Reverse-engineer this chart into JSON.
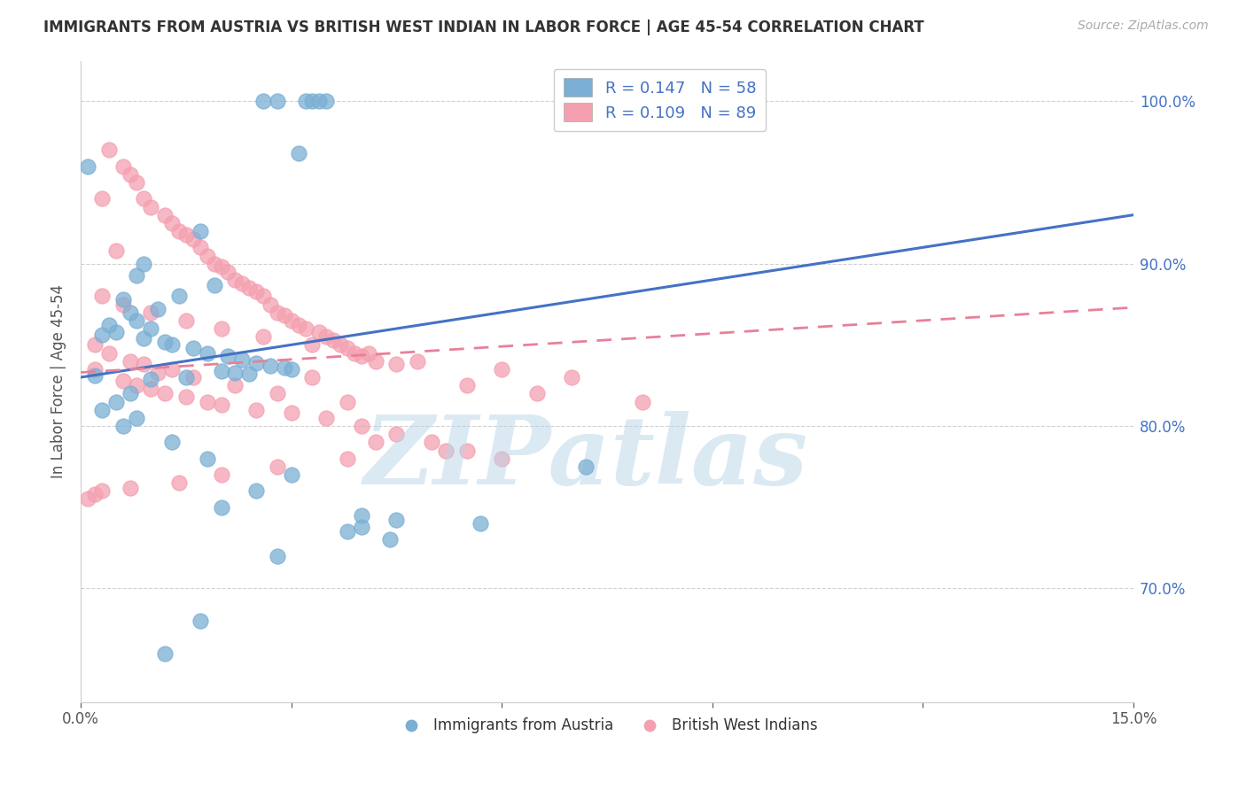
{
  "title": "IMMIGRANTS FROM AUSTRIA VS BRITISH WEST INDIAN IN LABOR FORCE | AGE 45-54 CORRELATION CHART",
  "source": "Source: ZipAtlas.com",
  "ylabel": "In Labor Force | Age 45-54",
  "xlim": [
    0.0,
    0.15
  ],
  "ylim": [
    0.63,
    1.025
  ],
  "x_tick_positions": [
    0.0,
    0.03,
    0.06,
    0.09,
    0.12,
    0.15
  ],
  "x_tick_labels": [
    "0.0%",
    "",
    "",
    "",
    "",
    "15.0%"
  ],
  "y_tick_positions": [
    0.7,
    0.8,
    0.9,
    1.0
  ],
  "y_tick_labels": [
    "70.0%",
    "80.0%",
    "90.0%",
    "100.0%"
  ],
  "legend_blue_label": "R = 0.147   N = 58",
  "legend_pink_label": "R = 0.109   N = 89",
  "legend_bottom_blue": "Immigrants from Austria",
  "legend_bottom_pink": "British West Indians",
  "blue_color": "#7BAFD4",
  "pink_color": "#F4A0B0",
  "blue_line_color": "#4472C4",
  "pink_line_color": "#E88098",
  "watermark": "ZIPatlas",
  "blue_trend_x0": 0.0,
  "blue_trend_y0": 0.83,
  "blue_trend_x1": 0.15,
  "blue_trend_y1": 0.93,
  "pink_trend_x0": 0.0,
  "pink_trend_y0": 0.833,
  "pink_trend_x1": 0.15,
  "pink_trend_y1": 0.873,
  "austria_x": [
    0.026,
    0.028,
    0.033,
    0.034,
    0.032,
    0.035,
    0.001,
    0.031,
    0.017,
    0.009,
    0.008,
    0.019,
    0.014,
    0.006,
    0.011,
    0.007,
    0.008,
    0.004,
    0.01,
    0.005,
    0.003,
    0.009,
    0.012,
    0.013,
    0.016,
    0.018,
    0.021,
    0.023,
    0.025,
    0.027,
    0.029,
    0.03,
    0.02,
    0.022,
    0.024,
    0.002,
    0.015,
    0.01,
    0.007,
    0.005,
    0.003,
    0.008,
    0.006,
    0.013,
    0.018,
    0.03,
    0.025,
    0.02,
    0.04,
    0.045,
    0.057,
    0.04,
    0.072,
    0.038,
    0.044,
    0.028,
    0.017,
    0.012
  ],
  "austria_y": [
    1.0,
    1.0,
    1.0,
    1.0,
    1.0,
    1.0,
    0.96,
    0.968,
    0.92,
    0.9,
    0.893,
    0.887,
    0.88,
    0.878,
    0.872,
    0.87,
    0.865,
    0.862,
    0.86,
    0.858,
    0.856,
    0.854,
    0.852,
    0.85,
    0.848,
    0.845,
    0.843,
    0.841,
    0.839,
    0.837,
    0.836,
    0.835,
    0.834,
    0.833,
    0.832,
    0.831,
    0.83,
    0.829,
    0.82,
    0.815,
    0.81,
    0.805,
    0.8,
    0.79,
    0.78,
    0.77,
    0.76,
    0.75,
    0.745,
    0.742,
    0.74,
    0.738,
    0.775,
    0.735,
    0.73,
    0.72,
    0.68,
    0.66
  ],
  "bwi_x": [
    0.004,
    0.006,
    0.007,
    0.008,
    0.009,
    0.003,
    0.01,
    0.012,
    0.013,
    0.014,
    0.015,
    0.016,
    0.017,
    0.005,
    0.018,
    0.019,
    0.02,
    0.021,
    0.022,
    0.023,
    0.024,
    0.025,
    0.026,
    0.027,
    0.028,
    0.029,
    0.03,
    0.031,
    0.032,
    0.034,
    0.035,
    0.036,
    0.037,
    0.038,
    0.039,
    0.04,
    0.042,
    0.045,
    0.002,
    0.011,
    0.033,
    0.006,
    0.008,
    0.01,
    0.012,
    0.015,
    0.018,
    0.02,
    0.025,
    0.03,
    0.035,
    0.04,
    0.045,
    0.05,
    0.055,
    0.06,
    0.002,
    0.004,
    0.007,
    0.009,
    0.013,
    0.016,
    0.022,
    0.028,
    0.038,
    0.003,
    0.006,
    0.01,
    0.015,
    0.02,
    0.026,
    0.033,
    0.041,
    0.048,
    0.06,
    0.07,
    0.055,
    0.065,
    0.08,
    0.042,
    0.052,
    0.038,
    0.028,
    0.02,
    0.014,
    0.007,
    0.003,
    0.002,
    0.001
  ],
  "bwi_y": [
    0.97,
    0.96,
    0.955,
    0.95,
    0.94,
    0.94,
    0.935,
    0.93,
    0.925,
    0.92,
    0.918,
    0.915,
    0.91,
    0.908,
    0.905,
    0.9,
    0.898,
    0.895,
    0.89,
    0.888,
    0.885,
    0.883,
    0.88,
    0.875,
    0.87,
    0.868,
    0.865,
    0.862,
    0.86,
    0.858,
    0.855,
    0.853,
    0.85,
    0.848,
    0.845,
    0.843,
    0.84,
    0.838,
    0.835,
    0.833,
    0.83,
    0.828,
    0.825,
    0.823,
    0.82,
    0.818,
    0.815,
    0.813,
    0.81,
    0.808,
    0.805,
    0.8,
    0.795,
    0.79,
    0.785,
    0.78,
    0.85,
    0.845,
    0.84,
    0.838,
    0.835,
    0.83,
    0.825,
    0.82,
    0.815,
    0.88,
    0.875,
    0.87,
    0.865,
    0.86,
    0.855,
    0.85,
    0.845,
    0.84,
    0.835,
    0.83,
    0.825,
    0.82,
    0.815,
    0.79,
    0.785,
    0.78,
    0.775,
    0.77,
    0.765,
    0.762,
    0.76,
    0.758,
    0.755
  ]
}
